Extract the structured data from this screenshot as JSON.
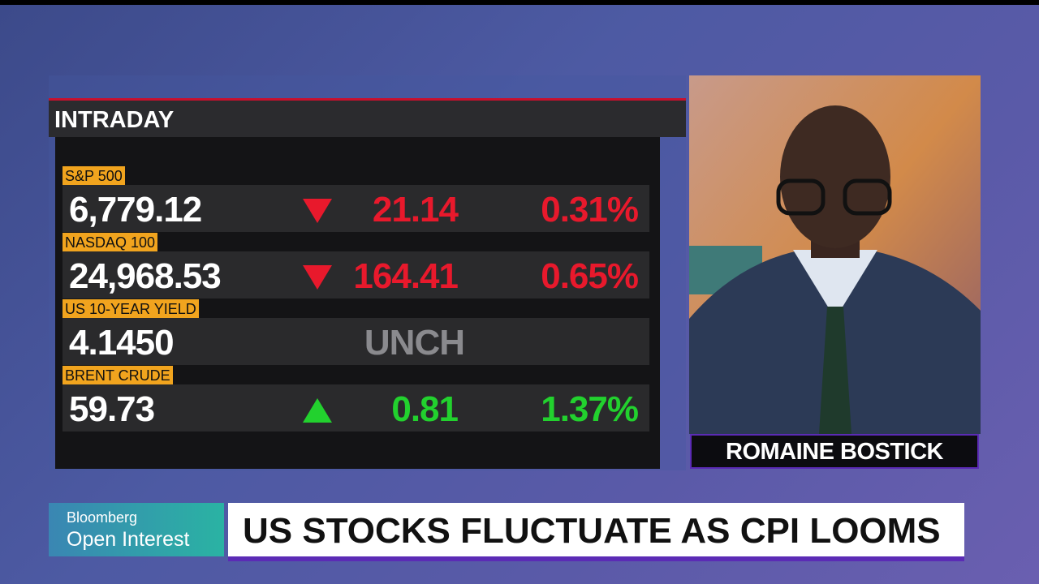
{
  "panel": {
    "title": "INTRADAY",
    "rows": [
      {
        "label": "S&P 500",
        "value": "6,779.12",
        "direction": "down",
        "change": "21.14",
        "percent": "0.31%"
      },
      {
        "label": "NASDAQ 100",
        "value": "24,968.53",
        "direction": "down",
        "change": "164.41",
        "percent": "0.65%"
      },
      {
        "label": "US 10-YEAR YIELD",
        "value": "4.1450",
        "change": "UNCH"
      },
      {
        "label": "BRENT CRUDE",
        "value": "59.73",
        "direction": "up",
        "change": "0.81",
        "percent": "1.37%"
      }
    ]
  },
  "speaker": {
    "name": "ROMAINE BOSTICK"
  },
  "show": {
    "brand": "Bloomberg",
    "program": "Open Interest"
  },
  "headline": "US STOCKS FLUCTUATE AS CPI LOOMS"
}
